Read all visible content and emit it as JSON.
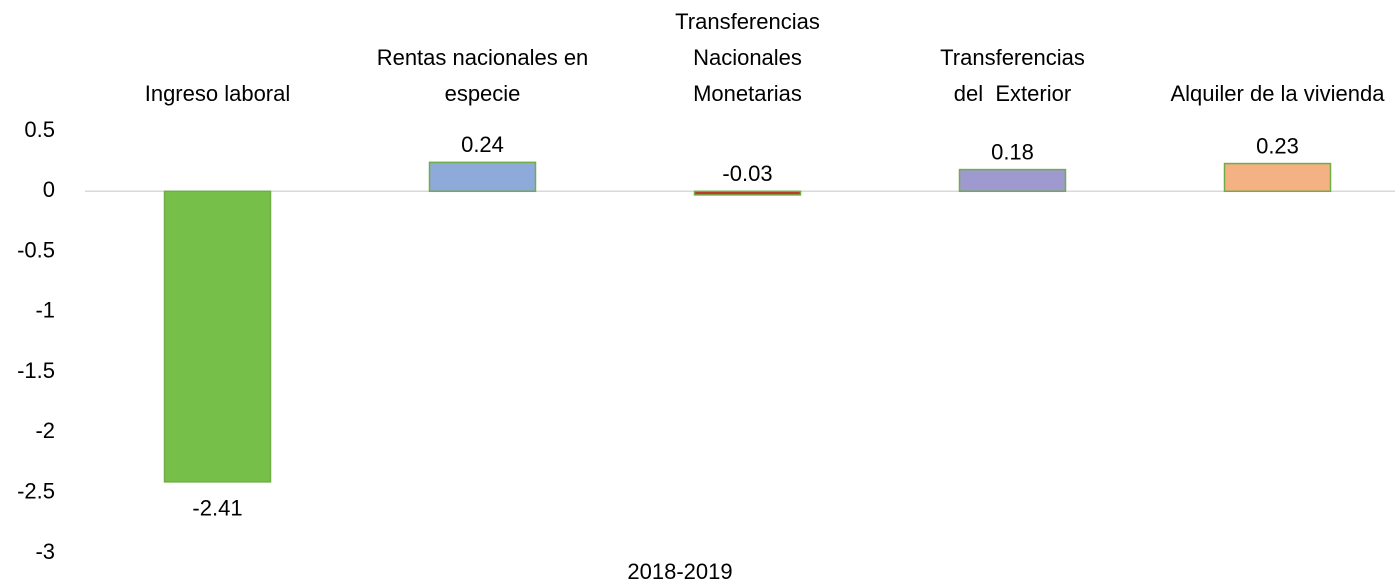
{
  "chart_data": {
    "type": "bar",
    "categories": [
      "Ingreso laboral",
      "Rentas nacionales en\nespecie",
      "Transferencias\nNacionales\nMonetarias",
      "Transferencias\ndel  Exterior",
      "Alquiler de la vivienda"
    ],
    "values": [
      -2.41,
      0.24,
      -0.03,
      0.18,
      0.23
    ],
    "colors": [
      "#76c04a",
      "#8eaadb",
      "#c0392b",
      "#9e9ad0",
      "#f4b183"
    ],
    "border_color": "#70ad47",
    "x_label": "2018-2019",
    "ylim": [
      -3,
      0.5
    ],
    "yticks": [
      -3,
      -2.5,
      -2,
      -1.5,
      -1,
      -0.5,
      0,
      0.5
    ],
    "grid": false
  }
}
